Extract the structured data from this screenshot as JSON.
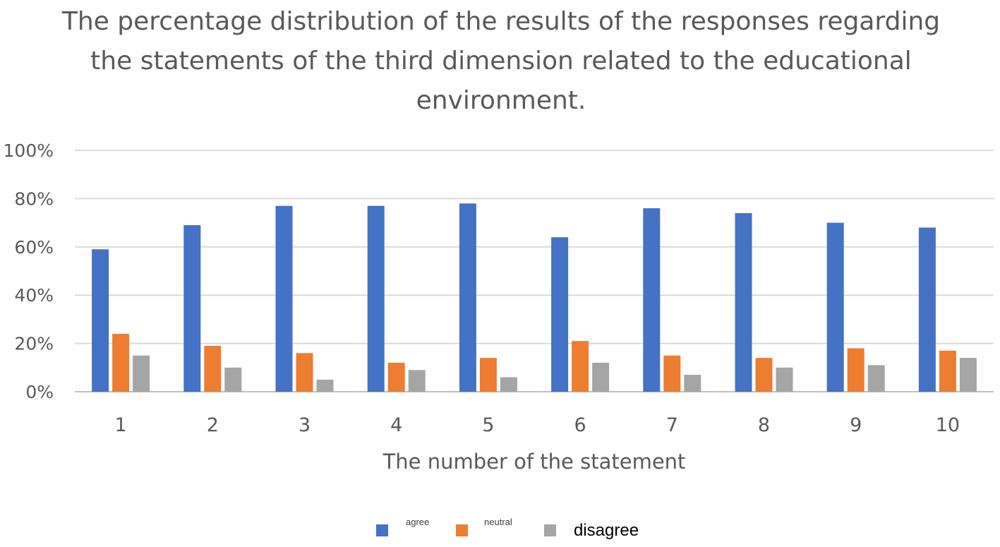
{
  "chart_data": {
    "type": "bar",
    "title_lines": [
      "The percentage distribution of the results of the responses regarding",
      "the statements of the third dimension related to the educational",
      "environment."
    ],
    "xlabel": "The number of the statement",
    "ylabel": "",
    "ylim": [
      0,
      100
    ],
    "y_ticks": [
      "0%",
      "20%",
      "40%",
      "60%",
      "80%",
      "100%"
    ],
    "grid": true,
    "legend_position": "bottom",
    "categories": [
      "1",
      "2",
      "3",
      "4",
      "5",
      "6",
      "7",
      "8",
      "9",
      "10"
    ],
    "series": [
      {
        "name": "agree",
        "color": "#4472C4",
        "values": [
          59,
          69,
          77,
          77,
          78,
          64,
          76,
          74,
          70,
          68
        ]
      },
      {
        "name": "neutral",
        "color": "#ED7D31",
        "values": [
          24,
          19,
          16,
          12,
          14,
          21,
          15,
          14,
          18,
          17
        ]
      },
      {
        "name": "disagree",
        "color": "#A5A5A5",
        "values": [
          15,
          10,
          5,
          9,
          6,
          12,
          7,
          10,
          11,
          14
        ]
      }
    ]
  }
}
